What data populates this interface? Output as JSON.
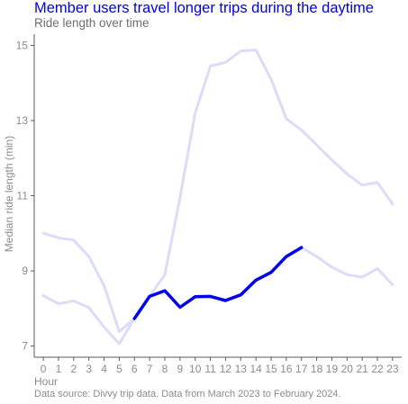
{
  "chart_data": {
    "type": "line",
    "title": "Member users travel longer trips during the daytime",
    "subtitle": "Ride length over time",
    "caption": "Data source: Divvy trip data. Data from March 2023 to February 2024.",
    "xlabel": "Hour",
    "ylabel": "Median ride length (min)",
    "x": [
      0,
      1,
      2,
      3,
      4,
      5,
      6,
      7,
      8,
      9,
      10,
      11,
      12,
      13,
      14,
      15,
      16,
      17,
      18,
      19,
      20,
      21,
      22,
      23
    ],
    "xlim": [
      -0.6,
      23.6
    ],
    "ylim": [
      6.7,
      15.3
    ],
    "yticks": [
      7,
      9,
      11,
      13,
      15
    ],
    "grid": false,
    "legend": "none",
    "series": [
      {
        "values": [
          10.0,
          9.88,
          9.82,
          9.38,
          8.6,
          7.38,
          7.73,
          8.32,
          8.9,
          10.95,
          13.2,
          14.45,
          14.55,
          14.85,
          14.88,
          14.1,
          13.05,
          12.75,
          12.35,
          11.95,
          11.58,
          11.28,
          11.35,
          10.78
        ],
        "color": "#dcdcfa",
        "emphasis": false
      },
      {
        "values": [
          8.34,
          8.12,
          8.2,
          8.02,
          7.5,
          7.06,
          7.73,
          8.32,
          8.47,
          8.03,
          8.31,
          8.32,
          8.21,
          8.36,
          8.75,
          8.96,
          9.38,
          9.62,
          9.38,
          9.1,
          8.9,
          8.83,
          9.06,
          8.63
        ],
        "color": "#dcdcfa",
        "emphasis": false
      },
      {
        "x": [
          6,
          7,
          8,
          9,
          10,
          11,
          12,
          13,
          14,
          15,
          16,
          17
        ],
        "values": [
          7.73,
          8.32,
          8.47,
          8.03,
          8.31,
          8.32,
          8.21,
          8.36,
          8.75,
          8.96,
          9.38,
          9.62
        ],
        "color": "#0000ee",
        "emphasis": true
      }
    ]
  },
  "colors": {
    "title": "#0000ee",
    "subtitle": "#6e6e6e",
    "text": "#8c8c8c",
    "axis_line": "#5a5a5a",
    "highlight": "#0000ee",
    "context": "#dcdcfa"
  }
}
